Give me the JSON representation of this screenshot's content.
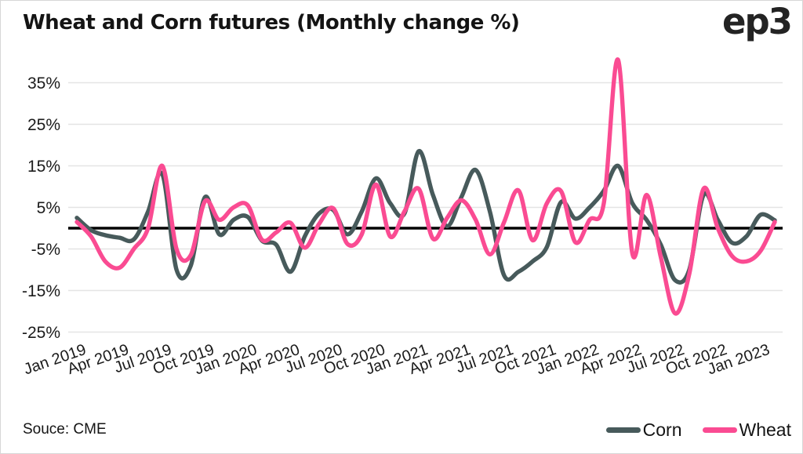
{
  "header": {
    "title": "Wheat and Corn futures (Monthly change %)",
    "logo": "ep3"
  },
  "source": {
    "label": "Souce: CME"
  },
  "legend": [
    {
      "label": "Corn",
      "color": "#475a5b"
    },
    {
      "label": "Wheat",
      "color": "#fa4b92"
    }
  ],
  "colors": {
    "grid": "#e4e4e4",
    "zero_line": "#000000",
    "text": "#1b1b1b",
    "corn": "#475a5b",
    "wheat": "#fa4b92"
  },
  "chart_data": {
    "type": "line",
    "title": "Wheat and Corn futures (Monthly change %)",
    "xlabel": "",
    "ylabel": "",
    "ylim": [
      -27,
      43
    ],
    "yticks": [
      35,
      25,
      15,
      5,
      -5,
      -15,
      -25
    ],
    "ytick_suffix": "%",
    "grid": "horizontal",
    "zero_line": true,
    "legend_position": "bottom-right",
    "x_tick_labels": [
      "Jan 2019",
      "Apr 2019",
      "Jul 2019",
      "Oct 2019",
      "Jan 2020",
      "Apr 2020",
      "Jul 2020",
      "Oct 2020",
      "Jan 2021",
      "Apr 2021",
      "Jul 2021",
      "Oct 2021",
      "Jan 2022",
      "Apr 2022",
      "Jul 2022",
      "Oct 2022",
      "Jan 2023"
    ],
    "x_tick_every": 3,
    "categories": [
      "Jan 2019",
      "Feb 2019",
      "Mar 2019",
      "Apr 2019",
      "May 2019",
      "Jun 2019",
      "Jul 2019",
      "Aug 2019",
      "Sep 2019",
      "Oct 2019",
      "Nov 2019",
      "Dec 2019",
      "Jan 2020",
      "Feb 2020",
      "Mar 2020",
      "Apr 2020",
      "May 2020",
      "Jun 2020",
      "Jul 2020",
      "Aug 2020",
      "Sep 2020",
      "Oct 2020",
      "Nov 2020",
      "Dec 2020",
      "Jan 2021",
      "Feb 2021",
      "Mar 2021",
      "Apr 2021",
      "May 2021",
      "Jun 2021",
      "Jul 2021",
      "Aug 2021",
      "Sep 2021",
      "Oct 2021",
      "Nov 2021",
      "Dec 2021",
      "Jan 2022",
      "Feb 2022",
      "Mar 2022",
      "Apr 2022",
      "May 2022",
      "Jun 2022",
      "Jul 2022",
      "Aug 2022",
      "Sep 2022",
      "Oct 2022",
      "Nov 2022",
      "Dec 2022",
      "Jan 2023",
      "Feb 2023"
    ],
    "series": [
      {
        "name": "Corn",
        "color": "#475a5b",
        "values": [
          2.5,
          -0.5,
          -1.7,
          -2.3,
          -2.7,
          4,
          13,
          -10,
          -9,
          7.5,
          -1.5,
          2,
          2.7,
          -3,
          -4,
          -10.5,
          -2,
          3.5,
          4.4,
          -1.5,
          4,
          12,
          6,
          3.5,
          18.5,
          8,
          0.5,
          7.5,
          14,
          4,
          -11.4,
          -10.5,
          -8,
          -4.5,
          6.3,
          2.3,
          5,
          9,
          15,
          6,
          2,
          -4,
          -12.5,
          -10,
          8,
          2,
          -3.5,
          -2,
          3.2,
          1.9
        ]
      },
      {
        "name": "Wheat",
        "color": "#fa4b92",
        "values": [
          1.5,
          -2,
          -8,
          -9.5,
          -5,
          0,
          15,
          -5,
          -6.5,
          6.5,
          2,
          5,
          5.5,
          -2.8,
          -1,
          1.3,
          -4.7,
          1,
          4.8,
          -3.8,
          -1.5,
          10.5,
          -2,
          4,
          9.5,
          -2.5,
          2.5,
          6.7,
          2,
          -6.3,
          1.5,
          9.1,
          -2.9,
          6,
          8.9,
          -3.4,
          2,
          6,
          40.5,
          -6.1,
          8,
          -7,
          -20.5,
          -11,
          9.5,
          0,
          -6.7,
          -8,
          -5.5,
          1.5
        ]
      }
    ]
  }
}
